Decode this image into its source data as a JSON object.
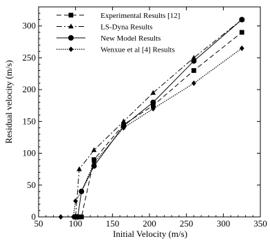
{
  "chart_data": {
    "type": "line",
    "title": "",
    "xlabel": "Initial Velocity (m/s)",
    "ylabel": "Residual velocity (m/s)",
    "xlim": [
      50,
      350
    ],
    "ylim": [
      0,
      330
    ],
    "xticks": [
      50,
      100,
      150,
      200,
      250,
      300,
      350
    ],
    "yticks": [
      0,
      50,
      100,
      150,
      200,
      250,
      300
    ],
    "grid": false,
    "legend_position": "top-left",
    "series": [
      {
        "name": "Experimental Results [12]",
        "line_style": "dashed",
        "marker": "square",
        "x": [
          100,
          105,
          108,
          125,
          165,
          205,
          260,
          325
        ],
        "y": [
          0,
          0,
          0,
          90,
          145,
          175,
          230,
          290
        ]
      },
      {
        "name": "LS-Dyna Results",
        "line_style": "dashdot",
        "marker": "triangle",
        "x": [
          100,
          105,
          125,
          165,
          205,
          260,
          325
        ],
        "y": [
          0,
          75,
          105,
          150,
          195,
          250,
          310
        ]
      },
      {
        "name": "New Model Results",
        "line_style": "solid",
        "marker": "circle",
        "x": [
          100,
          103,
          108,
          125,
          165,
          205,
          260,
          325
        ],
        "y": [
          0,
          0,
          40,
          80,
          143,
          180,
          245,
          310
        ]
      },
      {
        "name": "Wenxue et al [4] Results",
        "line_style": "dotted",
        "marker": "diamond",
        "x": [
          80,
          97,
          100,
          108,
          125,
          165,
          205,
          260,
          325
        ],
        "y": [
          0,
          0,
          25,
          40,
          85,
          140,
          170,
          210,
          265
        ]
      }
    ]
  }
}
